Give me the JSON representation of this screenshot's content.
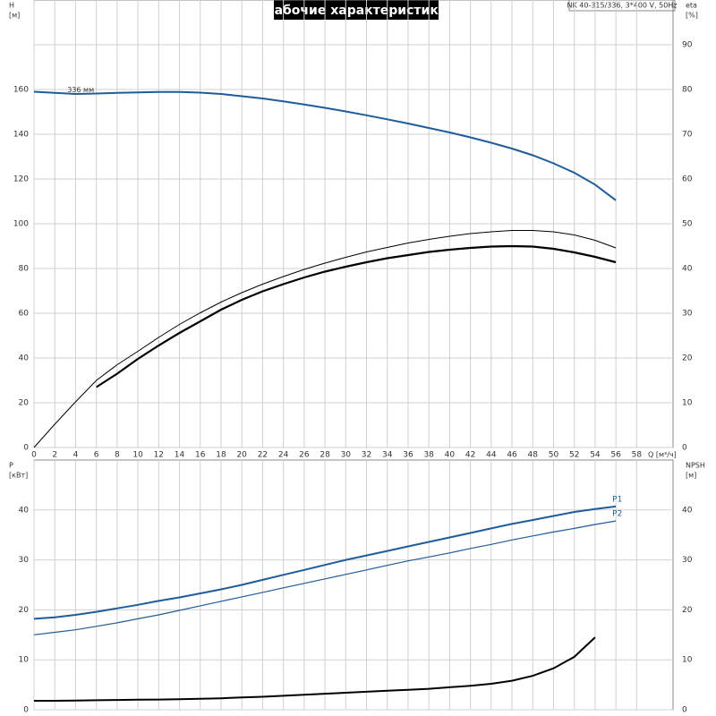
{
  "chart_data": [
    {
      "type": "line",
      "title": "Рабочие характеристики",
      "info": "NK 40-315/336, 3*400 V, 50Hz",
      "ylabel": [
        "H",
        "[м]"
      ],
      "y2label": [
        "eta",
        "[%]"
      ],
      "xlabel": "Q [м³/ч]",
      "annotation": "336 мм",
      "x": [
        0,
        2,
        4,
        6,
        8,
        10,
        12,
        14,
        16,
        18,
        20,
        22,
        24,
        26,
        28,
        30,
        32,
        34,
        36,
        38,
        40,
        42,
        44,
        46,
        48,
        50,
        52,
        54,
        56
      ],
      "xlim": [
        0,
        61.5
      ],
      "xticks": [
        0,
        2,
        4,
        6,
        8,
        10,
        12,
        14,
        16,
        18,
        20,
        22,
        24,
        26,
        28,
        30,
        32,
        34,
        36,
        38,
        40,
        42,
        44,
        46,
        48,
        50,
        52,
        54,
        56,
        58
      ],
      "ylim": [
        0,
        200
      ],
      "yticks": [
        0,
        20,
        40,
        60,
        80,
        100,
        120,
        140,
        160
      ],
      "y2lim": [
        0,
        100
      ],
      "y2ticks": [
        0,
        10,
        20,
        30,
        40,
        50,
        60,
        70,
        80,
        90
      ],
      "grid": true,
      "series": [
        {
          "color": "#1f5c99",
          "line_width": 2,
          "values": [
            159,
            158.5,
            158,
            158.2,
            158.5,
            158.7,
            158.9,
            158.9,
            158.6,
            158,
            157,
            156,
            154.7,
            153.3,
            151.8,
            150.2,
            148.5,
            146.7,
            144.8,
            142.8,
            140.8,
            138.6,
            136.2,
            133.6,
            130.6,
            127,
            122.8,
            117.5,
            110.5
          ]
        },
        {
          "color": "#000000",
          "line_width": 1,
          "axis": "y2",
          "values": [
            0,
            5.2,
            10.2,
            15,
            18.5,
            21.5,
            24.6,
            27.5,
            30.1,
            32.5,
            34.6,
            36.5,
            38.2,
            39.8,
            41.2,
            42.5,
            43.7,
            44.7,
            45.7,
            46.5,
            47.2,
            47.8,
            48.2,
            48.5,
            48.5,
            48.2,
            47.5,
            46.3,
            44.6
          ]
        },
        {
          "color": "#000000",
          "line_width": 2.2,
          "axis": "y2",
          "values": [
            null,
            null,
            null,
            13.5,
            16.5,
            19.8,
            22.8,
            25.6,
            28.2,
            30.8,
            33,
            34.9,
            36.5,
            38,
            39.3,
            40.4,
            41.4,
            42.3,
            43,
            43.7,
            44.2,
            44.6,
            44.9,
            45,
            44.9,
            44.4,
            43.6,
            42.6,
            41.4
          ]
        }
      ]
    },
    {
      "type": "line",
      "ylabel": [
        "P",
        "[кВт]"
      ],
      "y2label": [
        "NPSH",
        "[м]"
      ],
      "x": [
        0,
        2,
        4,
        6,
        8,
        10,
        12,
        14,
        16,
        18,
        20,
        22,
        24,
        26,
        28,
        30,
        32,
        34,
        36,
        38,
        40,
        42,
        44,
        46,
        48,
        50,
        52,
        54,
        56
      ],
      "xlim": [
        0,
        61.5
      ],
      "ylim": [
        0,
        50
      ],
      "yticks": [
        0,
        10,
        20,
        30,
        40
      ],
      "y2lim": [
        0,
        50
      ],
      "y2ticks": [
        0,
        10,
        20,
        30,
        40
      ],
      "grid": true,
      "series": [
        {
          "name": "P1",
          "color": "#1f5c99",
          "line_width": 2,
          "values": [
            18.2,
            18.5,
            19,
            19.6,
            20.3,
            21,
            21.8,
            22.5,
            23.3,
            24.1,
            25,
            26,
            27,
            28,
            29,
            30,
            30.9,
            31.8,
            32.7,
            33.6,
            34.5,
            35.4,
            36.3,
            37.2,
            38,
            38.8,
            39.6,
            40.2,
            40.7
          ]
        },
        {
          "name": "P2",
          "color": "#1f5c99",
          "line_width": 1.2,
          "values": [
            15,
            15.5,
            16,
            16.7,
            17.4,
            18.2,
            19,
            19.9,
            20.8,
            21.7,
            22.6,
            23.5,
            24.4,
            25.3,
            26.2,
            27.1,
            28,
            28.9,
            29.8,
            30.6,
            31.4,
            32.3,
            33.1,
            34,
            34.8,
            35.6,
            36.3,
            37.1,
            37.8
          ]
        },
        {
          "color": "#000000",
          "line_width": 2,
          "axis": "y2",
          "values": [
            1.8,
            1.8,
            1.85,
            1.9,
            1.95,
            2,
            2.05,
            2.1,
            2.2,
            2.3,
            2.45,
            2.6,
            2.8,
            3,
            3.2,
            3.4,
            3.6,
            3.8,
            4,
            4.2,
            4.5,
            4.8,
            5.2,
            5.8,
            6.8,
            8.3,
            10.6,
            14.5,
            null
          ]
        }
      ]
    }
  ]
}
